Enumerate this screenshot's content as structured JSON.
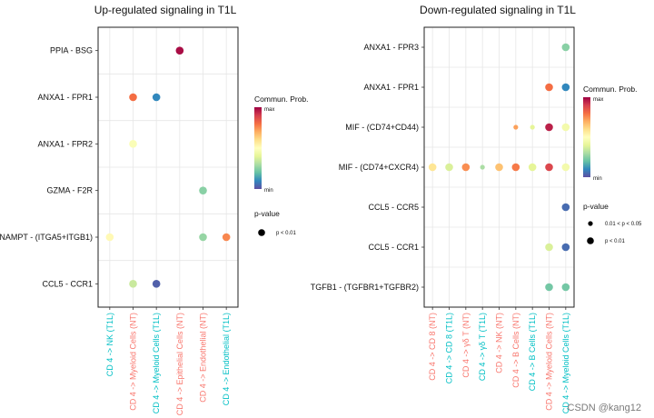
{
  "colors": {
    "gradient": [
      "#5e4fa2",
      "#3288bd",
      "#66c2a5",
      "#abdda4",
      "#e6f598",
      "#ffffbf",
      "#fee08b",
      "#fdae61",
      "#f46d43",
      "#d53e4f",
      "#9e0142"
    ],
    "nt": "#f8766d",
    "t1l": "#00bfc4",
    "grid": "#e6e6e6",
    "border": "#222222"
  },
  "watermark": "CSDN @kang12",
  "chart_data": [
    {
      "type": "scatter",
      "title": "Up-regulated signaling in T1L",
      "pairs": [
        "PPIA - BSG",
        "ANXA1 - FPR1",
        "ANXA1 - FPR2",
        "GZMA - F2R",
        "NAMPT - (ITGA5+ITGB1)",
        "CCL5 - CCR1"
      ],
      "groups": [
        {
          "label": "CD 4 -> NK (T1L)",
          "cond": "t1l"
        },
        {
          "label": "CD 4 -> Myeloid Cells (NT)",
          "cond": "nt"
        },
        {
          "label": "CD 4 -> Myeloid Cells (T1L)",
          "cond": "t1l"
        },
        {
          "label": "CD 4 -> Epithelial Cells (NT)",
          "cond": "nt"
        },
        {
          "label": "CD 4 -> Endothelial (NT)",
          "cond": "nt"
        },
        {
          "label": "CD 4 -> Endothelial (T1L)",
          "cond": "t1l"
        }
      ],
      "points": [
        {
          "pair": 0,
          "group": 3,
          "prob": 0.98,
          "pval": 0.01
        },
        {
          "pair": 1,
          "group": 1,
          "prob": 0.8,
          "pval": 0.01
        },
        {
          "pair": 1,
          "group": 2,
          "prob": 0.1,
          "pval": 0.01
        },
        {
          "pair": 2,
          "group": 1,
          "prob": 0.48,
          "pval": 0.01
        },
        {
          "pair": 3,
          "group": 4,
          "prob": 0.25,
          "pval": 0.01
        },
        {
          "pair": 4,
          "group": 0,
          "prob": 0.52,
          "pval": 0.01
        },
        {
          "pair": 4,
          "group": 4,
          "prob": 0.27,
          "pval": 0.01
        },
        {
          "pair": 4,
          "group": 5,
          "prob": 0.76,
          "pval": 0.01
        },
        {
          "pair": 5,
          "group": 1,
          "prob": 0.35,
          "pval": 0.01
        },
        {
          "pair": 5,
          "group": 2,
          "prob": 0.03,
          "pval": 0.01
        }
      ],
      "legend": {
        "prob_title": "Commun. Prob.",
        "prob_max": "max",
        "prob_min": "min",
        "pval_title": "p-value",
        "pval_entries": [
          {
            "label": "p < 0.01",
            "size": "large"
          }
        ]
      }
    },
    {
      "type": "scatter",
      "title": "Down-regulated signaling in T1L",
      "pairs": [
        "ANXA1 - FPR3",
        "ANXA1 - FPR1",
        "MIF - (CD74+CD44)",
        "MIF - (CD74+CXCR4)",
        "CCL5 - CCR5",
        "CCL5 - CCR1",
        "TGFB1 - (TGFBR1+TGFBR2)"
      ],
      "groups": [
        {
          "label": "CD 4 -> CD 8 (NT)",
          "cond": "nt"
        },
        {
          "label": "CD 4 -> CD 8 (T1L)",
          "cond": "t1l"
        },
        {
          "label": "CD 4 -> γδ T (NT)",
          "cond": "nt"
        },
        {
          "label": "CD 4 -> γδ T (T1L)",
          "cond": "t1l"
        },
        {
          "label": "CD 4 -> NK (NT)",
          "cond": "nt"
        },
        {
          "label": "CD 4 -> B Cells (NT)",
          "cond": "nt"
        },
        {
          "label": "CD 4 -> B Cells (T1L)",
          "cond": "t1l"
        },
        {
          "label": "CD 4 -> Myeloid Cells (NT)",
          "cond": "nt"
        },
        {
          "label": "CD 4 -> Myeloid Cells (T1L)",
          "cond": "t1l"
        }
      ],
      "points": [
        {
          "pair": 0,
          "group": 8,
          "prob": 0.25,
          "pval": 0.01
        },
        {
          "pair": 1,
          "group": 7,
          "prob": 0.8,
          "pval": 0.01
        },
        {
          "pair": 1,
          "group": 8,
          "prob": 0.1,
          "pval": 0.01
        },
        {
          "pair": 2,
          "group": 5,
          "prob": 0.72,
          "pval": 0.05
        },
        {
          "pair": 2,
          "group": 6,
          "prob": 0.4,
          "pval": 0.05
        },
        {
          "pair": 2,
          "group": 7,
          "prob": 0.95,
          "pval": 0.01
        },
        {
          "pair": 2,
          "group": 8,
          "prob": 0.45,
          "pval": 0.01
        },
        {
          "pair": 3,
          "group": 0,
          "prob": 0.58,
          "pval": 0.01
        },
        {
          "pair": 3,
          "group": 1,
          "prob": 0.38,
          "pval": 0.01
        },
        {
          "pair": 3,
          "group": 2,
          "prob": 0.75,
          "pval": 0.01
        },
        {
          "pair": 3,
          "group": 3,
          "prob": 0.3,
          "pval": 0.05
        },
        {
          "pair": 3,
          "group": 4,
          "prob": 0.66,
          "pval": 0.01
        },
        {
          "pair": 3,
          "group": 5,
          "prob": 0.78,
          "pval": 0.01
        },
        {
          "pair": 3,
          "group": 6,
          "prob": 0.4,
          "pval": 0.01
        },
        {
          "pair": 3,
          "group": 7,
          "prob": 0.88,
          "pval": 0.01
        },
        {
          "pair": 3,
          "group": 8,
          "prob": 0.45,
          "pval": 0.01
        },
        {
          "pair": 4,
          "group": 8,
          "prob": 0.05,
          "pval": 0.01
        },
        {
          "pair": 5,
          "group": 7,
          "prob": 0.38,
          "pval": 0.01
        },
        {
          "pair": 5,
          "group": 8,
          "prob": 0.05,
          "pval": 0.01
        },
        {
          "pair": 6,
          "group": 7,
          "prob": 0.22,
          "pval": 0.01
        },
        {
          "pair": 6,
          "group": 8,
          "prob": 0.22,
          "pval": 0.01
        }
      ],
      "legend": {
        "prob_title": "Commun. Prob.",
        "prob_max": "max",
        "prob_min": "min",
        "pval_title": "p-value",
        "pval_entries": [
          {
            "label": "0.01 < p < 0.05",
            "size": "small"
          },
          {
            "label": "p < 0.01",
            "size": "large"
          }
        ]
      }
    }
  ]
}
